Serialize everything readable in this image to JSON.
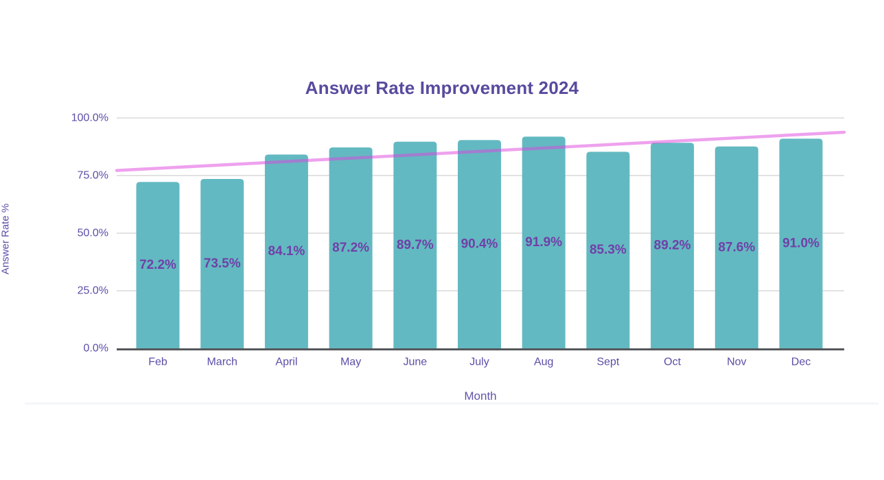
{
  "chart_data": {
    "type": "bar",
    "title": "Answer Rate Improvement 2024",
    "xlabel": "Month",
    "ylabel": "Answer Rate %",
    "categories": [
      "Feb",
      "March",
      "April",
      "May",
      "June",
      "July",
      "Aug",
      "Sept",
      "Oct",
      "Nov",
      "Dec"
    ],
    "series": [
      {
        "name": "Answer Rate",
        "type": "bar",
        "values": [
          72.2,
          73.5,
          84.1,
          87.2,
          89.7,
          90.4,
          91.9,
          85.3,
          89.2,
          87.6,
          91.0
        ],
        "labels": [
          "72.2%",
          "73.5%",
          "84.1%",
          "87.2%",
          "89.7%",
          "90.4%",
          "91.9%",
          "85.3%",
          "89.2%",
          "87.6%",
          "91.0%"
        ]
      },
      {
        "name": "Trend",
        "type": "line",
        "endpoints_pct": [
          77.2,
          93.8
        ]
      }
    ],
    "yticks": [
      {
        "value": 0,
        "label": "0.0%"
      },
      {
        "value": 25,
        "label": "25.0%"
      },
      {
        "value": 50,
        "label": "50.0%"
      },
      {
        "value": 75,
        "label": "75.0%"
      },
      {
        "value": 100,
        "label": "100.0%"
      }
    ],
    "ylim": [
      0,
      100
    ],
    "grid": true,
    "legend": "none",
    "colors": {
      "bar": "#63b9c1",
      "trend_line": "#dd44dd",
      "trend_line_opacity": 0.5,
      "gridline": "#e2e2e2",
      "axis_line": "#55575a",
      "title_text": "#584a9e",
      "bar_label_text": "#7040a8",
      "tick_label_text": "#5a4fa8"
    }
  }
}
